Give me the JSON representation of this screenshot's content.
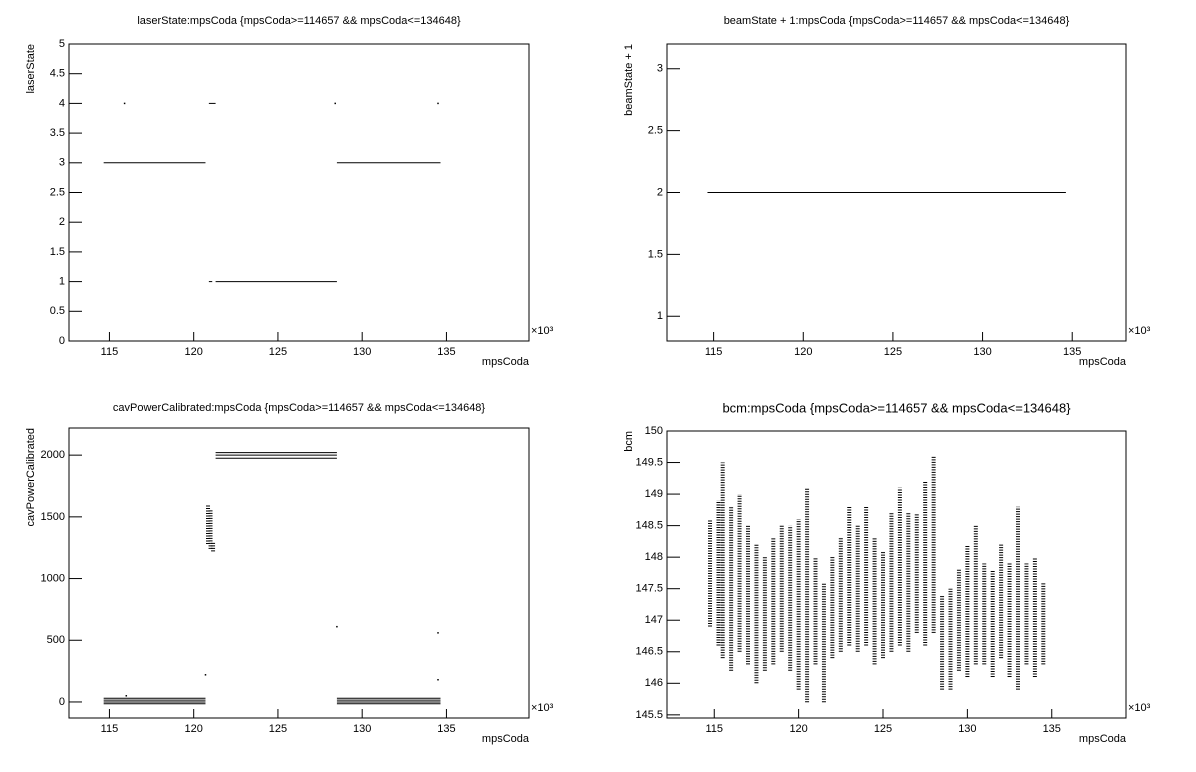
{
  "chart_data": [
    {
      "type": "scatter",
      "title": "laserState:mpsCoda {mpsCoda>=114657 && mpsCoda<=134648}",
      "xlabel": "mpsCoda",
      "ylabel": "laserState",
      "x_exponent": "×10³",
      "xlim": [
        112.6,
        139.9
      ],
      "xticks": [
        115,
        120,
        125,
        130,
        135
      ],
      "ylim": [
        0,
        5
      ],
      "yticks": [
        0,
        0.5,
        1,
        1.5,
        2,
        2.5,
        3,
        3.5,
        4,
        4.5,
        5
      ],
      "lines": [
        {
          "x": [
            114.657,
            120.7
          ],
          "values": [
            3,
            3
          ]
        },
        {
          "x": [
            120.9,
            121.3
          ],
          "values": [
            4,
            4
          ]
        },
        {
          "x": [
            120.9,
            121.1
          ],
          "values": [
            1,
            1
          ]
        },
        {
          "x": [
            121.3,
            128.5
          ],
          "values": [
            1,
            1
          ]
        },
        {
          "x": [
            128.5,
            134.648
          ],
          "values": [
            3,
            3
          ]
        }
      ],
      "points": {
        "x": [
          115.9,
          128.4,
          134.5
        ],
        "values": [
          4,
          4,
          4
        ]
      }
    },
    {
      "type": "scatter",
      "title": "beamState + 1:mpsCoda {mpsCoda>=114657 && mpsCoda<=134648}",
      "xlabel": "mpsCoda",
      "ylabel": "beamState + 1",
      "x_exponent": "×10³",
      "xlim": [
        112.4,
        138.0
      ],
      "xticks": [
        115,
        120,
        125,
        130,
        135
      ],
      "ylim": [
        0.8,
        3.2
      ],
      "yticks": [
        1,
        1.5,
        2,
        2.5,
        3
      ],
      "lines": [
        {
          "x": [
            114.657,
            134.648
          ],
          "values": [
            2,
            2
          ]
        }
      ],
      "points": {
        "x": [],
        "values": []
      }
    },
    {
      "type": "scatter",
      "title": "cavPowerCalibrated:mpsCoda {mpsCoda>=114657 && mpsCoda<=134648}",
      "xlabel": "mpsCoda",
      "ylabel": "cavPowerCalibrated",
      "x_exponent": "×10³",
      "xlim": [
        112.6,
        139.9
      ],
      "xticks": [
        115,
        120,
        125,
        130,
        135
      ],
      "ylim": [
        -130,
        2220
      ],
      "yticks": [
        0,
        500,
        1000,
        1500,
        2000
      ],
      "lines": [
        {
          "x": [
            114.657,
            120.7
          ],
          "values": [
            30,
            30
          ]
        },
        {
          "x": [
            114.657,
            120.7
          ],
          "values": [
            15,
            15
          ]
        },
        {
          "x": [
            114.657,
            120.7
          ],
          "values": [
            0,
            0
          ]
        },
        {
          "x": [
            114.657,
            120.7
          ],
          "values": [
            -15,
            -15
          ]
        },
        {
          "x": [
            121.3,
            128.5
          ],
          "values": [
            2020,
            2020
          ]
        },
        {
          "x": [
            121.3,
            128.5
          ],
          "values": [
            2000,
            2000
          ]
        },
        {
          "x": [
            121.3,
            128.5
          ],
          "values": [
            1975,
            1975
          ]
        },
        {
          "x": [
            128.5,
            134.648
          ],
          "values": [
            30,
            30
          ]
        },
        {
          "x": [
            128.5,
            134.648
          ],
          "values": [
            15,
            15
          ]
        },
        {
          "x": [
            128.5,
            134.648
          ],
          "values": [
            0,
            0
          ]
        },
        {
          "x": [
            128.5,
            134.648
          ],
          "values": [
            -15,
            -15
          ]
        },
        {
          "x": [
            120.85,
            120.85
          ],
          "values": [
            1280,
            1600
          ]
        },
        {
          "x": [
            121.0,
            121.0
          ],
          "values": [
            1240,
            1560
          ]
        },
        {
          "x": [
            121.15,
            121.15
          ],
          "values": [
            1220,
            1300
          ]
        }
      ],
      "points": {
        "x": [
          116.0,
          120.7,
          128.5,
          134.5,
          134.5
        ],
        "values": [
          50,
          220,
          610,
          560,
          180
        ]
      }
    },
    {
      "type": "scatter",
      "title": "bcm:mpsCoda {mpsCoda>=114657 && mpsCoda<=134648}",
      "xlabel": "mpsCoda",
      "ylabel": "bcm",
      "x_exponent": "×10³",
      "xlim": [
        112.2,
        139.4
      ],
      "xticks": [
        115,
        120,
        125,
        130,
        135
      ],
      "ylim": [
        145.45,
        150
      ],
      "yticks": [
        145.5,
        146,
        146.5,
        147,
        147.5,
        148,
        148.5,
        149,
        149.5,
        150
      ],
      "lines": [
        {
          "x": [
            114.75,
            114.75
          ],
          "values": [
            146.9,
            148.6
          ]
        },
        {
          "x": [
            115.25,
            115.25
          ],
          "values": [
            146.6,
            148.9
          ]
        },
        {
          "x": [
            115.5,
            115.5
          ],
          "values": [
            146.4,
            149.5
          ]
        },
        {
          "x": [
            116,
            116
          ],
          "values": [
            146.2,
            148.8
          ]
        },
        {
          "x": [
            116.5,
            116.5
          ],
          "values": [
            146.5,
            149
          ]
        },
        {
          "x": [
            117,
            117
          ],
          "values": [
            146.3,
            148.5
          ]
        },
        {
          "x": [
            117.5,
            117.5
          ],
          "values": [
            146,
            148.2
          ]
        },
        {
          "x": [
            118,
            118
          ],
          "values": [
            146.2,
            148
          ]
        },
        {
          "x": [
            118.5,
            118.5
          ],
          "values": [
            146.3,
            148.3
          ]
        },
        {
          "x": [
            119,
            119
          ],
          "values": [
            146.5,
            148.5
          ]
        },
        {
          "x": [
            119.5,
            119.5
          ],
          "values": [
            146.2,
            148.5
          ]
        },
        {
          "x": [
            120,
            120
          ],
          "values": [
            145.9,
            148.6
          ]
        },
        {
          "x": [
            120.5,
            120.5
          ],
          "values": [
            145.7,
            149.1
          ]
        },
        {
          "x": [
            121,
            121
          ],
          "values": [
            146.3,
            148
          ]
        },
        {
          "x": [
            121.5,
            121.5
          ],
          "values": [
            145.7,
            147.6
          ]
        },
        {
          "x": [
            122,
            122
          ],
          "values": [
            146.4,
            148
          ]
        },
        {
          "x": [
            122.5,
            122.5
          ],
          "values": [
            146.5,
            148.3
          ]
        },
        {
          "x": [
            123,
            123
          ],
          "values": [
            146.6,
            148.8
          ]
        },
        {
          "x": [
            123.5,
            123.5
          ],
          "values": [
            146.5,
            148.5
          ]
        },
        {
          "x": [
            124,
            124
          ],
          "values": [
            146.6,
            148.8
          ]
        },
        {
          "x": [
            124.5,
            124.5
          ],
          "values": [
            146.3,
            148.3
          ]
        },
        {
          "x": [
            125,
            125
          ],
          "values": [
            146.4,
            148.1
          ]
        },
        {
          "x": [
            125.5,
            125.5
          ],
          "values": [
            146.5,
            148.7
          ]
        },
        {
          "x": [
            126,
            126
          ],
          "values": [
            146.6,
            149.1
          ]
        },
        {
          "x": [
            126.5,
            126.5
          ],
          "values": [
            146.5,
            148.7
          ]
        },
        {
          "x": [
            127,
            127
          ],
          "values": [
            146.8,
            148.7
          ]
        },
        {
          "x": [
            127.5,
            127.5
          ],
          "values": [
            146.6,
            149.2
          ]
        },
        {
          "x": [
            128,
            128
          ],
          "values": [
            146.8,
            149.6
          ]
        },
        {
          "x": [
            128.5,
            128.5
          ],
          "values": [
            145.9,
            147.4
          ]
        },
        {
          "x": [
            129,
            129
          ],
          "values": [
            145.9,
            147.5
          ]
        },
        {
          "x": [
            129.5,
            129.5
          ],
          "values": [
            146.2,
            147.8
          ]
        },
        {
          "x": [
            130,
            130
          ],
          "values": [
            146.1,
            148.2
          ]
        },
        {
          "x": [
            130.5,
            130.5
          ],
          "values": [
            146.3,
            148.5
          ]
        },
        {
          "x": [
            131,
            131
          ],
          "values": [
            146.3,
            147.9
          ]
        },
        {
          "x": [
            131.5,
            131.5
          ],
          "values": [
            146.1,
            147.8
          ]
        },
        {
          "x": [
            132,
            132
          ],
          "values": [
            146.4,
            148.2
          ]
        },
        {
          "x": [
            132.5,
            132.5
          ],
          "values": [
            146.1,
            147.9
          ]
        },
        {
          "x": [
            133,
            133
          ],
          "values": [
            145.9,
            148.8
          ]
        },
        {
          "x": [
            133.5,
            133.5
          ],
          "values": [
            146.3,
            147.9
          ]
        },
        {
          "x": [
            134,
            134
          ],
          "values": [
            146.1,
            148
          ]
        },
        {
          "x": [
            134.5,
            134.5
          ],
          "values": [
            146.3,
            147.6
          ]
        }
      ],
      "points": {
        "x": [],
        "values": []
      }
    }
  ]
}
